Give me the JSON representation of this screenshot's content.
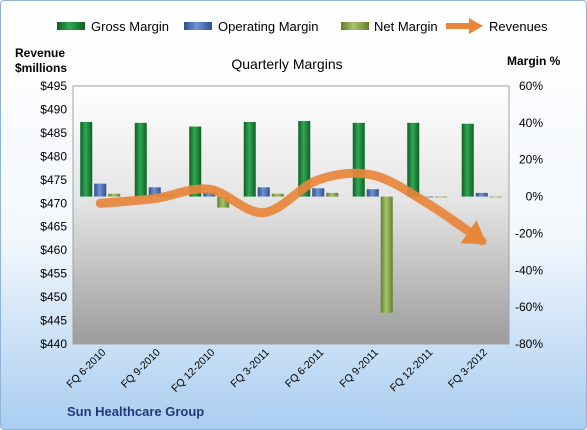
{
  "chart_data": {
    "type": "bar",
    "title": "Quarterly Margins",
    "categories": [
      "FQ 6-2010",
      "FQ 9-2010",
      "FQ 12-2010",
      "FQ 3-2011",
      "FQ 6-2011",
      "FQ 9-2011",
      "FQ 12-2011",
      "FQ 3-2012"
    ],
    "series": [
      {
        "name": "Gross Margin",
        "axis": "right",
        "values": [
          40.5,
          40,
          38,
          40.5,
          41,
          40,
          40,
          39.5
        ],
        "color": "#1e8a3c"
      },
      {
        "name": "Operating Margin",
        "axis": "right",
        "values": [
          7,
          5,
          2.5,
          5,
          4.5,
          4,
          0,
          2
        ],
        "color": "#4f73b8"
      },
      {
        "name": "Net Margin",
        "axis": "right",
        "values": [
          1.5,
          1.5,
          -6,
          1.5,
          2,
          -63,
          0,
          0
        ],
        "color": "#8aab4c"
      },
      {
        "name": "Revenues",
        "type": "line",
        "axis": "left",
        "values": [
          470,
          471,
          473,
          468,
          475,
          476,
          470,
          462
        ],
        "color": "#e8863a"
      }
    ],
    "ylabel_left": "Revenue\n$millions",
    "ylabel_right": "Margin %",
    "ylim_left": [
      440,
      495
    ],
    "ylim_right": [
      -80,
      60
    ],
    "yticks_left": [
      "$495",
      "$490",
      "$485",
      "$480",
      "$475",
      "$470",
      "$465",
      "$460",
      "$455",
      "$450",
      "$445",
      "$440"
    ],
    "yticks_right": [
      "60%",
      "40%",
      "20%",
      "0%",
      "-20%",
      "-40%",
      "-60%",
      "-80%"
    ],
    "legend_position": "top",
    "grid": false
  },
  "footer": {
    "company": "Sun Healthcare Group"
  }
}
